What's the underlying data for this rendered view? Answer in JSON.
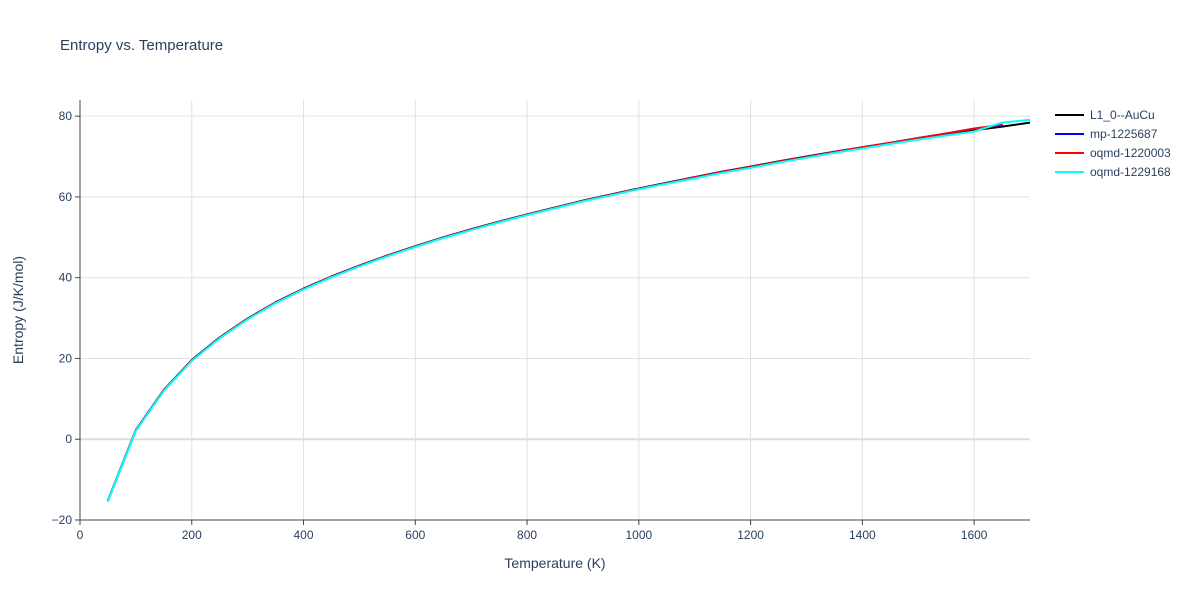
{
  "chart_data": {
    "type": "line",
    "title": "Entropy vs. Temperature",
    "xlabel": "Temperature (K)",
    "ylabel": "Entropy (J/K/mol)",
    "xlim": [
      0,
      1700
    ],
    "ylim": [
      -20,
      84
    ],
    "xticks": [
      0,
      200,
      400,
      600,
      800,
      1000,
      1200,
      1400,
      1600
    ],
    "yticks": [
      -20,
      0,
      20,
      40,
      60,
      80
    ],
    "grid": true,
    "legend_position": "right",
    "series": [
      {
        "name": "L1_0--AuCu",
        "color": "#000000",
        "x": [
          50,
          100,
          150,
          200,
          250,
          300,
          350,
          400,
          450,
          500,
          550,
          600,
          650,
          700,
          750,
          800,
          850,
          900,
          950,
          1000,
          1050,
          1100,
          1150,
          1200,
          1250,
          1300,
          1350,
          1400,
          1450,
          1500,
          1550,
          1600,
          1650,
          1700
        ],
        "y": [
          -15.2,
          2.3,
          12.2,
          19.6,
          25.2,
          29.9,
          33.9,
          37.3,
          40.3,
          43.0,
          45.5,
          47.8,
          50.0,
          52.0,
          53.9,
          55.7,
          57.4,
          59.1,
          60.6,
          62.1,
          63.5,
          64.9,
          66.3,
          67.5,
          68.8,
          70.0,
          71.2,
          72.3,
          73.4,
          74.5,
          75.5,
          76.5,
          77.4,
          78.4
        ]
      },
      {
        "name": "mp-1225687",
        "color": "#0000ff",
        "x": [
          50,
          100,
          150,
          200,
          250,
          300,
          350,
          400,
          450,
          500,
          550,
          600,
          650,
          700,
          750,
          800,
          850,
          900,
          950,
          1000,
          1050,
          1100,
          1150,
          1200,
          1250,
          1300,
          1350,
          1400,
          1450,
          1500,
          1550,
          1600,
          1650
        ],
        "y": [
          -15.2,
          2.2,
          12.1,
          19.5,
          25.1,
          29.8,
          33.8,
          37.2,
          40.2,
          42.9,
          45.4,
          47.7,
          49.9,
          51.9,
          53.8,
          55.6,
          57.3,
          59.0,
          60.5,
          62.0,
          63.4,
          64.8,
          66.2,
          67.4,
          68.7,
          69.9,
          71.1,
          72.3,
          73.4,
          74.6,
          75.7,
          76.9,
          77.7
        ]
      },
      {
        "name": "oqmd-1220003",
        "color": "#ff0000",
        "x": [
          50,
          100,
          150,
          200,
          250,
          300,
          350,
          400,
          450,
          500,
          550,
          600,
          650,
          700,
          750,
          800,
          850,
          900,
          950,
          1000,
          1050,
          1100,
          1150,
          1200,
          1250,
          1300,
          1350,
          1400,
          1450,
          1500,
          1550,
          1600,
          1650
        ],
        "y": [
          -15.2,
          2.2,
          12.1,
          19.5,
          25.1,
          29.8,
          33.8,
          37.2,
          40.2,
          42.9,
          45.4,
          47.7,
          49.9,
          51.9,
          53.8,
          55.6,
          57.3,
          59.0,
          60.5,
          62.0,
          63.4,
          64.8,
          66.2,
          67.4,
          68.7,
          69.9,
          71.1,
          72.3,
          73.4,
          74.6,
          75.7,
          76.9,
          77.9
        ]
      },
      {
        "name": "oqmd-1229168",
        "color": "#00ffff",
        "x": [
          50,
          100,
          150,
          200,
          250,
          300,
          350,
          400,
          450,
          500,
          550,
          600,
          650,
          700,
          750,
          800,
          850,
          900,
          950,
          1000,
          1050,
          1100,
          1150,
          1200,
          1250,
          1300,
          1350,
          1400,
          1450,
          1500,
          1550,
          1600,
          1650,
          1700
        ],
        "y": [
          -15.3,
          2.1,
          12.0,
          19.4,
          25.0,
          29.7,
          33.7,
          37.1,
          40.1,
          42.8,
          45.3,
          47.6,
          49.8,
          51.8,
          53.7,
          55.5,
          57.2,
          58.9,
          60.4,
          61.9,
          63.3,
          64.6,
          66.0,
          67.2,
          68.5,
          69.7,
          70.9,
          72.0,
          73.1,
          74.2,
          75.2,
          76.2,
          78.4,
          79.1
        ]
      }
    ]
  }
}
